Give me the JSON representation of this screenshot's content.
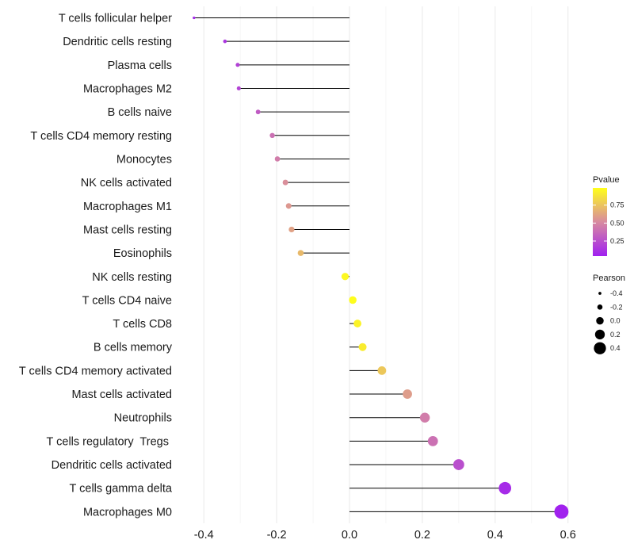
{
  "chart_data": {
    "type": "lollipop",
    "title": "",
    "xlabel": "",
    "ylabel": "",
    "xlim": [
      -0.45,
      0.6
    ],
    "x_ticks": [
      -0.4,
      -0.2,
      0.0,
      0.2,
      0.4,
      0.6
    ],
    "x_tick_labels": [
      "-0.4",
      "-0.2",
      "0.0",
      "0.2",
      "0.4",
      "0.6"
    ],
    "grid": true,
    "categories": [
      "T cells follicular helper",
      "Dendritic cells resting",
      "Plasma cells",
      "Macrophages M2",
      "B cells naive",
      "T cells CD4 memory resting",
      "Monocytes",
      "NK cells activated",
      "Macrophages M1",
      "Mast cells resting",
      "Eosinophils",
      "NK cells resting",
      "T cells CD4 naive",
      "T cells CD8",
      "B cells memory",
      "T cells CD4 memory activated",
      "Mast cells activated",
      "Neutrophils",
      "T cells regulatory  Tregs ",
      "Dendritic cells activated",
      "T cells gamma delta",
      "Macrophages M0"
    ],
    "pearson": [
      -0.427,
      -0.342,
      -0.307,
      -0.304,
      -0.251,
      -0.212,
      -0.198,
      -0.176,
      -0.167,
      -0.159,
      -0.134,
      -0.012,
      0.009,
      0.022,
      0.036,
      0.089,
      0.159,
      0.207,
      0.229,
      0.3,
      0.427,
      0.582
    ],
    "pvalue": [
      0.04,
      0.1,
      0.16,
      0.17,
      0.28,
      0.38,
      0.44,
      0.52,
      0.56,
      0.6,
      0.7,
      0.97,
      0.99,
      0.95,
      0.92,
      0.76,
      0.58,
      0.44,
      0.38,
      0.22,
      0.05,
      0.01
    ],
    "legend": {
      "pvalue": {
        "title": "Pvalue",
        "labels": [
          "0.75",
          "0.50",
          "0.25"
        ],
        "values": [
          0.75,
          0.5,
          0.25
        ],
        "color_low": "#a020f0",
        "color_mid": "#d88aa0",
        "color_high": "#ffff1a"
      },
      "pearson": {
        "title": "Pearson",
        "labels": [
          "-0.4",
          "-0.2",
          "0.0",
          "0.2",
          "0.4"
        ],
        "values": [
          -0.4,
          -0.2,
          0.0,
          0.2,
          0.4
        ]
      }
    }
  }
}
